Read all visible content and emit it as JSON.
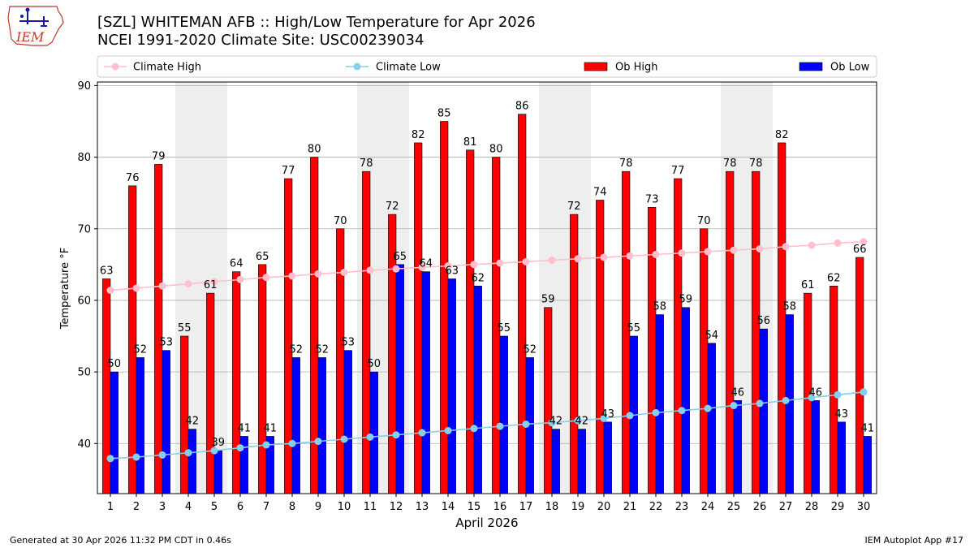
{
  "header": {
    "title": "[SZL] WHITEMAN AFB :: High/Low Temperature for Apr 2026",
    "subtitle": "NCEI 1991-2020 Climate Site: USC00239034",
    "logo_text": "IEM"
  },
  "footer": {
    "left": "Generated at 30 Apr 2026 11:32 PM CDT in 0.46s",
    "right": "IEM Autoplot App #17"
  },
  "colors": {
    "ob_high": "#ff0000",
    "ob_low": "#0000ff",
    "climate_high": "#ffc0cb",
    "climate_low": "#87ceeb",
    "weekend_shade": "#eeeeee",
    "grid": "#b0b0b0"
  },
  "chart_data": {
    "type": "bar",
    "xlabel": "April 2026",
    "ylabel": "Temperature °F",
    "ylim": [
      33,
      90.5
    ],
    "yticks": [
      40,
      50,
      60,
      70,
      80,
      90
    ],
    "grid": "horizontal",
    "legend_position": "top",
    "categories": [
      "1",
      "2",
      "3",
      "4",
      "5",
      "6",
      "7",
      "8",
      "9",
      "10",
      "11",
      "12",
      "13",
      "14",
      "15",
      "16",
      "17",
      "18",
      "19",
      "20",
      "21",
      "22",
      "23",
      "24",
      "25",
      "26",
      "27",
      "28",
      "29",
      "30"
    ],
    "shaded_days": [
      "4",
      "5",
      "11",
      "12",
      "18",
      "19",
      "25",
      "26"
    ],
    "series": [
      {
        "name": "Ob High",
        "kind": "bar",
        "values": [
          63,
          76,
          79,
          55,
          61,
          64,
          65,
          77,
          80,
          70,
          78,
          72,
          82,
          85,
          81,
          80,
          86,
          59,
          72,
          74,
          78,
          73,
          77,
          70,
          78,
          78,
          82,
          61,
          62,
          66
        ]
      },
      {
        "name": "Ob Low",
        "kind": "bar",
        "values": [
          50,
          52,
          53,
          42,
          39,
          41,
          41,
          52,
          52,
          53,
          50,
          65,
          64,
          63,
          62,
          55,
          52,
          42,
          42,
          43,
          55,
          58,
          59,
          54,
          46,
          56,
          58,
          46,
          43,
          41
        ]
      },
      {
        "name": "Climate High",
        "kind": "line",
        "values": [
          61.4,
          61.7,
          62.0,
          62.3,
          62.6,
          62.9,
          63.2,
          63.4,
          63.7,
          63.9,
          64.2,
          64.4,
          64.6,
          64.8,
          65.0,
          65.2,
          65.4,
          65.6,
          65.8,
          66.0,
          66.2,
          66.4,
          66.6,
          66.8,
          67.0,
          67.2,
          67.5,
          67.7,
          68.0,
          68.2
        ]
      },
      {
        "name": "Climate Low",
        "kind": "line",
        "values": [
          37.9,
          38.1,
          38.4,
          38.7,
          39.0,
          39.4,
          39.8,
          40.0,
          40.3,
          40.6,
          40.9,
          41.2,
          41.5,
          41.8,
          42.1,
          42.4,
          42.7,
          42.9,
          43.2,
          43.5,
          43.9,
          44.3,
          44.6,
          44.9,
          45.3,
          45.6,
          46.0,
          46.4,
          46.8,
          47.2
        ]
      }
    ]
  }
}
